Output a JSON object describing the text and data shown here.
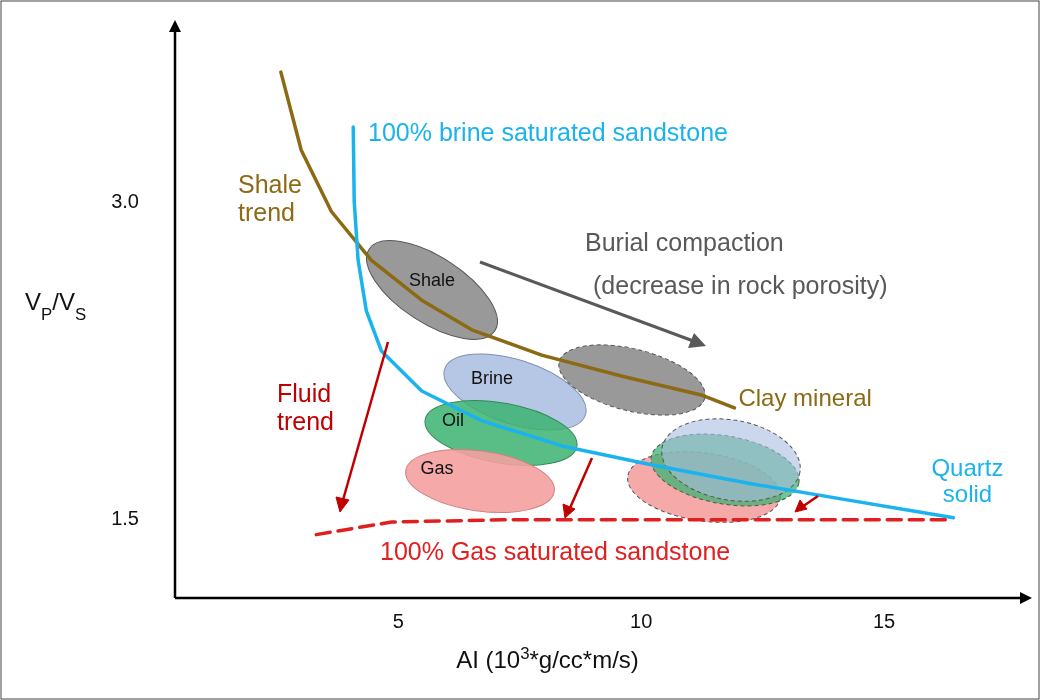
{
  "chart_data": {
    "type": "line",
    "xlabel": "AI (10$^{3}$*g/cc*m/s)",
    "ylabel": "V$_{P}$/V$_{S}$",
    "xlim": [
      0.4,
      17.8
    ],
    "ylim": [
      1.12,
      3.8
    ],
    "xticks": [
      5,
      10,
      15
    ],
    "yticks": [
      {
        "value": 1.5,
        "label": "1.5"
      },
      {
        "value": 3,
        "label": "3.0"
      }
    ],
    "marker": "none",
    "series": [
      {
        "name": "Shale trend",
        "color": "#8c6a14",
        "x": [
          2.58,
          3.0,
          3.62,
          4.44,
          5.48,
          6.51,
          7.95,
          9.61,
          11.26,
          11.92
        ],
        "values": [
          3.61,
          3.24,
          2.95,
          2.72,
          2.53,
          2.39,
          2.27,
          2.17,
          2.08,
          2.02
        ]
      },
      {
        "name": "100% brine saturated sandstone",
        "color": "#1ab3ee",
        "x": [
          4.07,
          4.09,
          4.17,
          4.34,
          4.65,
          5.48,
          6.71,
          8.37,
          10.23,
          12.29,
          14.36,
          16.43
        ],
        "values": [
          3.35,
          3.0,
          2.72,
          2.48,
          2.29,
          2.1,
          1.96,
          1.84,
          1.75,
          1.66,
          1.58,
          1.5
        ]
      },
      {
        "name": "100% Gas saturated sandstone",
        "color": "#e02020",
        "line_style": "dashed",
        "x": [
          3.31,
          4.86,
          7.13,
          11.26,
          16.32
        ],
        "values": [
          1.42,
          1.48,
          1.49,
          1.49,
          1.49
        ]
      }
    ],
    "annotations": [
      "Shale",
      "Brine",
      "Oil",
      "Gas",
      {
        "text": "Clay mineral",
        "x": 11.92,
        "y": 2.02
      },
      {
        "text": "Quartz solid",
        "x": 16.43,
        "y": 1.5
      },
      "Burial compaction",
      "(decrease in rock porosity)",
      "Fluid trend"
    ]
  }
}
